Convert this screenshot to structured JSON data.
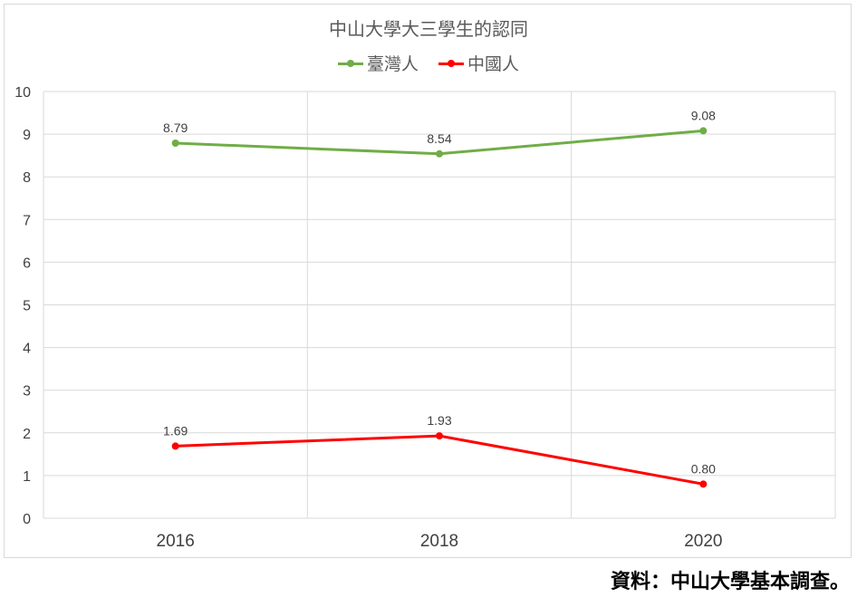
{
  "chart_data": {
    "type": "line",
    "title": "中山大學大三學生的認同",
    "categories": [
      "2016",
      "2018",
      "2020"
    ],
    "series": [
      {
        "name": "臺灣人",
        "values": [
          8.79,
          8.54,
          9.08
        ],
        "labels": [
          "8.79",
          "8.54",
          "9.08"
        ],
        "color": "#70ad47"
      },
      {
        "name": "中國人",
        "values": [
          1.69,
          1.93,
          0.8
        ],
        "labels": [
          "1.69",
          "1.93",
          "0.80"
        ],
        "color": "#ff0000"
      }
    ],
    "ylim": [
      0,
      10
    ],
    "yticks": [
      "0",
      "1",
      "2",
      "3",
      "4",
      "5",
      "6",
      "7",
      "8",
      "9",
      "10"
    ],
    "grid": true,
    "legend_position": "top"
  },
  "source_note": "資料：中山大學基本調查。",
  "colors": {
    "gridline": "#d9d9d9",
    "text": "#595959"
  }
}
